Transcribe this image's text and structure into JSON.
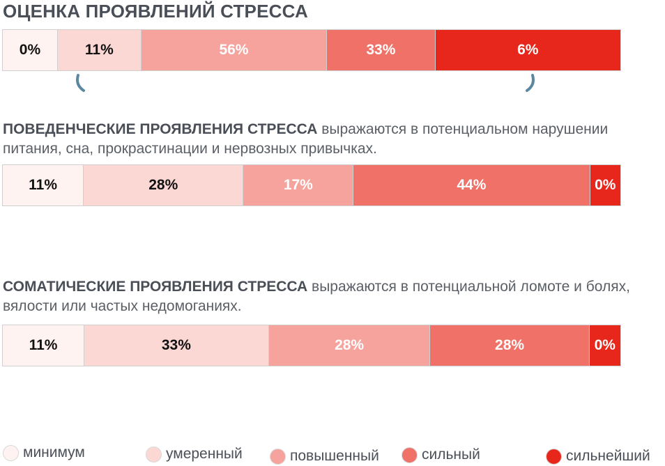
{
  "title": "ОЦЕНКА ПРОЯВЛЕНИЙ СТРЕССА",
  "colors": {
    "level_1": "#fff3f1",
    "level_2": "#fbd8d4",
    "level_3": "#f6a39e",
    "level_4": "#f07168",
    "level_5": "#e8271c",
    "text_dark": "#111111",
    "text_light": "#ffffff",
    "marker": "#5b87a0"
  },
  "chart_data": [
    {
      "type": "bar",
      "stacked": true,
      "orientation": "horizontal",
      "title": "ОЦЕНКА ПРОЯВЛЕНИЙ СТРЕССА",
      "categories": [
        "минимум",
        "умеренный",
        "повышенный",
        "сильный",
        "сильнейший"
      ],
      "values": [
        0,
        11,
        56,
        33,
        6
      ],
      "labels": [
        "0%",
        "11%",
        "56%",
        "33%",
        "6%"
      ],
      "widths": [
        9,
        13.5,
        30,
        17.5,
        30
      ]
    },
    {
      "type": "bar",
      "stacked": true,
      "orientation": "horizontal",
      "title": "ПОВЕДЕНЧЕСКИЕ ПРОЯВЛЕНИЯ СТРЕССА",
      "categories": [
        "минимум",
        "умеренный",
        "повышенный",
        "сильный",
        "сильнейший"
      ],
      "values": [
        11,
        28,
        17,
        44,
        0
      ],
      "labels": [
        "11%",
        "28%",
        "17%",
        "44%",
        "0%"
      ],
      "widths": [
        13.2,
        25.8,
        17.8,
        38.2,
        5
      ]
    },
    {
      "type": "bar",
      "stacked": true,
      "orientation": "horizontal",
      "title": "СОМАТИЧЕСКИЕ ПРОЯВЛЕНИЯ СТРЕССА",
      "categories": [
        "минимум",
        "умеренный",
        "повышенный",
        "сильный",
        "сильнейший"
      ],
      "values": [
        11,
        33,
        28,
        28,
        0
      ],
      "labels": [
        "11%",
        "33%",
        "28%",
        "28%",
        "0%"
      ],
      "widths": [
        13.3,
        29.8,
        26.1,
        25.7,
        5.1
      ]
    }
  ],
  "sections": [
    {
      "highlight": "ПОВЕДЕНЧЕСКИЕ ПРОЯВЛЕНИЯ СТРЕССА",
      "text": " выражаются в потенциальном нарушении питания, сна, прокрастинации и нервозных привычках."
    },
    {
      "highlight": "СОМАТИЧЕСКИЕ ПРОЯВЛЕНИЯ СТРЕССА",
      "text": " выражаются в потенциальной ломоте и болях, вялости или частых недомоганиях."
    }
  ],
  "legend": [
    {
      "label": "минимум",
      "color": "#fff3f1"
    },
    {
      "label": "умеренный",
      "color": "#fbd8d4"
    },
    {
      "label": "повышенный",
      "color": "#f6a39e"
    },
    {
      "label": "сильный",
      "color": "#f07168"
    },
    {
      "label": "сильнейший",
      "color": "#e8271c"
    }
  ]
}
